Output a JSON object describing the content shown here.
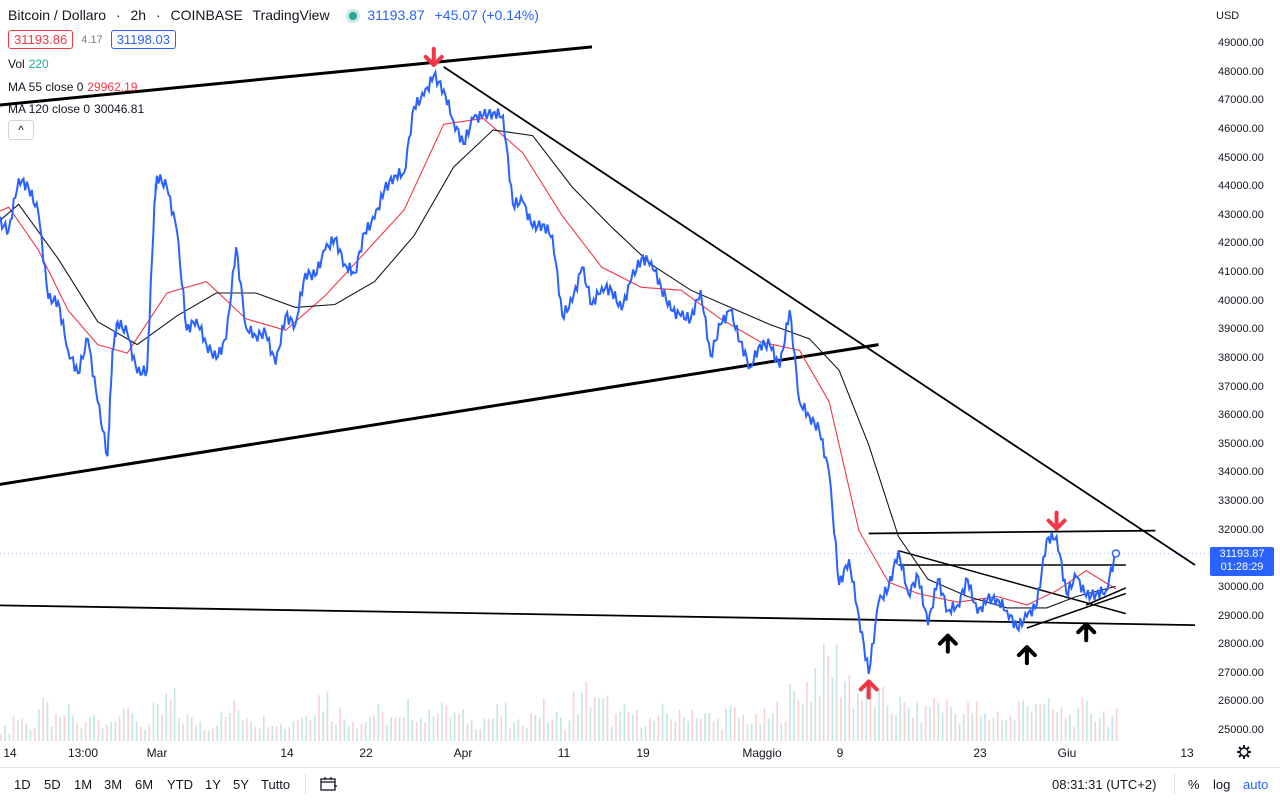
{
  "header": {
    "symbol": "Bitcoin / Dollaro",
    "interval": "2h",
    "exchange": "COINBASE",
    "provider": "TradingView",
    "last_price": "31193.87",
    "change": "+45.07 (+0.14%)",
    "bid": "31193.86",
    "spread": "4.17",
    "ask": "31198.03"
  },
  "indicators": {
    "vol_label": "Vol",
    "vol_value": "220",
    "ma55_label": "MA 55 close 0",
    "ma55_value": "29962.19",
    "ma120_label": "MA 120 close 0",
    "ma120_value": "30046.81",
    "collapse_glyph": "^"
  },
  "price_axis": {
    "currency": "USD",
    "ticks": [
      "49000.00",
      "48000.00",
      "47000.00",
      "46000.00",
      "45000.00",
      "44000.00",
      "43000.00",
      "42000.00",
      "41000.00",
      "40000.00",
      "39000.00",
      "38000.00",
      "37000.00",
      "36000.00",
      "35000.00",
      "34000.00",
      "33000.00",
      "32000.00",
      "31000.00",
      "30000.00",
      "29000.00",
      "28000.00",
      "27000.00",
      "26000.00",
      "25000.00"
    ],
    "last_price_tag": "31193.87",
    "countdown": "01:28:29"
  },
  "time_axis": {
    "ticks": [
      "14",
      "13:00",
      "Mar",
      "14",
      "22",
      "Apr",
      "11",
      "19",
      "Maggio",
      "9",
      "23",
      "Giu",
      "13"
    ]
  },
  "bottom_toolbar": {
    "timeframes": [
      "1D",
      "5D",
      "1M",
      "3M",
      "6M",
      "YTD",
      "1Y",
      "5Y",
      "Tutto"
    ],
    "clock": "08:31:31 (UTC+2)",
    "percent": "%",
    "log": "log",
    "auto": "auto"
  },
  "colors": {
    "price_line": "#2962ff",
    "ma55": "#f23645",
    "ma120": "#131722",
    "volume_up": "#26a69a",
    "volume_down": "#ef5350",
    "arrow_red": "#f23645",
    "arrow_black": "#000000"
  },
  "chart_data": {
    "type": "line",
    "title": "Bitcoin / Dollaro, 2h, COINBASE",
    "ylim": [
      24800,
      49800
    ],
    "x_range": [
      "2022-02-12",
      "2022-06-14"
    ],
    "series": [
      {
        "name": "Bitcoin / Dollaro",
        "points": [
          [
            "2022-02-12",
            42100
          ],
          [
            "2022-02-13",
            42800
          ],
          [
            "2022-02-14",
            42500
          ],
          [
            "2022-02-15",
            44300
          ],
          [
            "2022-02-16",
            44000
          ],
          [
            "2022-02-17",
            43100
          ],
          [
            "2022-02-18",
            40100
          ],
          [
            "2022-02-19",
            40000
          ],
          [
            "2022-02-20",
            38300
          ],
          [
            "2022-02-21",
            37500
          ],
          [
            "2022-02-22",
            38700
          ],
          [
            "2022-02-23",
            36500
          ],
          [
            "2022-02-24",
            34600
          ],
          [
            "2022-02-24T12:00",
            38300
          ],
          [
            "2022-02-25",
            39300
          ],
          [
            "2022-02-26",
            38900
          ],
          [
            "2022-02-27",
            37500
          ],
          [
            "2022-02-28",
            37600
          ],
          [
            "2022-02-28T18:00",
            43500
          ],
          [
            "2022-03-01",
            44400
          ],
          [
            "2022-03-02",
            44000
          ],
          [
            "2022-03-03",
            42500
          ],
          [
            "2022-03-04",
            39000
          ],
          [
            "2022-03-05",
            39400
          ],
          [
            "2022-03-06",
            38500
          ],
          [
            "2022-03-07",
            38000
          ],
          [
            "2022-03-08",
            38700
          ],
          [
            "2022-03-09",
            41900
          ],
          [
            "2022-03-10",
            39100
          ],
          [
            "2022-03-11",
            38800
          ],
          [
            "2022-03-12",
            38900
          ],
          [
            "2022-03-13",
            37800
          ],
          [
            "2022-03-14",
            39500
          ],
          [
            "2022-03-15",
            39200
          ],
          [
            "2022-03-16",
            41000
          ],
          [
            "2022-03-17",
            40900
          ],
          [
            "2022-03-18",
            41800
          ],
          [
            "2022-03-19",
            42200
          ],
          [
            "2022-03-20",
            41300
          ],
          [
            "2022-03-21",
            41000
          ],
          [
            "2022-03-22",
            42400
          ],
          [
            "2022-03-23",
            42900
          ],
          [
            "2022-03-24",
            43900
          ],
          [
            "2022-03-25",
            44400
          ],
          [
            "2022-03-26",
            44500
          ],
          [
            "2022-03-27",
            46800
          ],
          [
            "2022-03-28",
            47200
          ],
          [
            "2022-03-29",
            47900
          ],
          [
            "2022-03-30",
            47400
          ],
          [
            "2022-03-31",
            46300
          ],
          [
            "2022-04-01",
            45500
          ],
          [
            "2022-04-02",
            46400
          ],
          [
            "2022-04-03",
            46500
          ],
          [
            "2022-04-04",
            46600
          ],
          [
            "2022-04-05",
            46500
          ],
          [
            "2022-04-06",
            43400
          ],
          [
            "2022-04-07",
            43500
          ],
          [
            "2022-04-08",
            42600
          ],
          [
            "2022-04-09",
            42700
          ],
          [
            "2022-04-10",
            42300
          ],
          [
            "2022-04-11",
            39500
          ],
          [
            "2022-04-12",
            40000
          ],
          [
            "2022-04-13",
            41200
          ],
          [
            "2022-04-14",
            39900
          ],
          [
            "2022-04-15",
            40500
          ],
          [
            "2022-04-16",
            40400
          ],
          [
            "2022-04-17",
            39700
          ],
          [
            "2022-04-18",
            40800
          ],
          [
            "2022-04-19",
            41500
          ],
          [
            "2022-04-20",
            41400
          ],
          [
            "2022-04-21",
            40500
          ],
          [
            "2022-04-22",
            39700
          ],
          [
            "2022-04-23",
            39500
          ],
          [
            "2022-04-24",
            39400
          ],
          [
            "2022-04-25",
            40400
          ],
          [
            "2022-04-26",
            38100
          ],
          [
            "2022-04-27",
            39200
          ],
          [
            "2022-04-28",
            39700
          ],
          [
            "2022-04-29",
            38600
          ],
          [
            "2022-04-30",
            37700
          ],
          [
            "2022-05-01",
            38500
          ],
          [
            "2022-05-02",
            38500
          ],
          [
            "2022-05-03",
            37700
          ],
          [
            "2022-05-04",
            39700
          ],
          [
            "2022-05-05",
            36500
          ],
          [
            "2022-05-06",
            36000
          ],
          [
            "2022-05-07",
            35500
          ],
          [
            "2022-05-08",
            34000
          ],
          [
            "2022-05-09",
            30100
          ],
          [
            "2022-05-10",
            31000
          ],
          [
            "2022-05-11",
            29000
          ],
          [
            "2022-05-12",
            27000
          ],
          [
            "2022-05-13",
            29500
          ],
          [
            "2022-05-14",
            30000
          ],
          [
            "2022-05-15",
            31300
          ],
          [
            "2022-05-16",
            29800
          ],
          [
            "2022-05-17",
            30400
          ],
          [
            "2022-05-18",
            28700
          ],
          [
            "2022-05-19",
            30300
          ],
          [
            "2022-05-20",
            29200
          ],
          [
            "2022-05-21",
            29400
          ],
          [
            "2022-05-22",
            30300
          ],
          [
            "2022-05-23",
            29100
          ],
          [
            "2022-05-24",
            29600
          ],
          [
            "2022-05-25",
            29600
          ],
          [
            "2022-05-26",
            29200
          ],
          [
            "2022-05-27",
            28600
          ],
          [
            "2022-05-28",
            29000
          ],
          [
            "2022-05-29",
            29400
          ],
          [
            "2022-05-30",
            31700
          ],
          [
            "2022-05-31",
            31800
          ],
          [
            "2022-06-01",
            29800
          ],
          [
            "2022-06-02",
            30400
          ],
          [
            "2022-06-03",
            29700
          ],
          [
            "2022-06-04",
            29800
          ],
          [
            "2022-06-05",
            29900
          ],
          [
            "2022-06-06",
            31200
          ]
        ]
      },
      {
        "name": "MA 55 close 0",
        "points": [
          [
            "2022-02-12",
            43000
          ],
          [
            "2022-02-14",
            43300
          ],
          [
            "2022-02-17",
            41800
          ],
          [
            "2022-02-20",
            39700
          ],
          [
            "2022-02-23",
            38500
          ],
          [
            "2022-02-26",
            38200
          ],
          [
            "2022-03-02",
            40300
          ],
          [
            "2022-03-06",
            40700
          ],
          [
            "2022-03-10",
            39400
          ],
          [
            "2022-03-14",
            39000
          ],
          [
            "2022-03-18",
            40200
          ],
          [
            "2022-03-22",
            41700
          ],
          [
            "2022-03-26",
            43200
          ],
          [
            "2022-03-30",
            46200
          ],
          [
            "2022-04-03",
            46400
          ],
          [
            "2022-04-07",
            45200
          ],
          [
            "2022-04-11",
            43000
          ],
          [
            "2022-04-15",
            41200
          ],
          [
            "2022-04-19",
            40500
          ],
          [
            "2022-04-23",
            40400
          ],
          [
            "2022-04-27",
            39400
          ],
          [
            "2022-05-01",
            38600
          ],
          [
            "2022-05-05",
            38300
          ],
          [
            "2022-05-08",
            36500
          ],
          [
            "2022-05-11",
            32000
          ],
          [
            "2022-05-14",
            30200
          ],
          [
            "2022-05-17",
            29800
          ],
          [
            "2022-05-21",
            29500
          ],
          [
            "2022-05-25",
            29700
          ],
          [
            "2022-05-28",
            29400
          ],
          [
            "2022-05-31",
            29900
          ],
          [
            "2022-06-03",
            30600
          ],
          [
            "2022-06-06",
            29960
          ]
        ]
      },
      {
        "name": "MA 120 close 0",
        "points": [
          [
            "2022-02-12",
            42500
          ],
          [
            "2022-02-15",
            43400
          ],
          [
            "2022-02-19",
            41500
          ],
          [
            "2022-02-23",
            39300
          ],
          [
            "2022-02-27",
            38500
          ],
          [
            "2022-03-03",
            39500
          ],
          [
            "2022-03-07",
            40300
          ],
          [
            "2022-03-11",
            40300
          ],
          [
            "2022-03-15",
            39800
          ],
          [
            "2022-03-19",
            39900
          ],
          [
            "2022-03-23",
            40700
          ],
          [
            "2022-03-27",
            42300
          ],
          [
            "2022-03-31",
            44700
          ],
          [
            "2022-04-04",
            46000
          ],
          [
            "2022-04-08",
            45800
          ],
          [
            "2022-04-12",
            44000
          ],
          [
            "2022-04-16",
            42600
          ],
          [
            "2022-04-20",
            41300
          ],
          [
            "2022-04-24",
            40400
          ],
          [
            "2022-04-28",
            39800
          ],
          [
            "2022-05-02",
            39200
          ],
          [
            "2022-05-06",
            38700
          ],
          [
            "2022-05-09",
            37600
          ],
          [
            "2022-05-12",
            35000
          ],
          [
            "2022-05-15",
            31800
          ],
          [
            "2022-05-18",
            30300
          ],
          [
            "2022-05-22",
            29700
          ],
          [
            "2022-05-26",
            29300
          ],
          [
            "2022-05-30",
            29300
          ],
          [
            "2022-06-02",
            29700
          ],
          [
            "2022-06-06",
            30050
          ]
        ]
      }
    ],
    "trendlines": [
      {
        "from": [
          "2022-02-11",
          46800
        ],
        "to": [
          "2022-04-14",
          48900
        ]
      },
      {
        "from": [
          "2022-02-11",
          33500
        ],
        "to": [
          "2022-05-13",
          38500
        ]
      },
      {
        "from": [
          "2022-03-30",
          48200
        ],
        "to": [
          "2022-06-14",
          30800
        ]
      },
      {
        "from": [
          "2022-02-11",
          29400
        ],
        "to": [
          "2022-06-14",
          28700
        ]
      },
      {
        "from": [
          "2022-05-12",
          31900
        ],
        "to": [
          "2022-06-10",
          32000
        ]
      },
      {
        "from": [
          "2022-05-15",
          30800
        ],
        "to": [
          "2022-06-07",
          30800
        ]
      },
      {
        "from": [
          "2022-05-15",
          31300
        ],
        "to": [
          "2022-06-07",
          29100
        ]
      },
      {
        "from": [
          "2022-05-28",
          28600
        ],
        "to": [
          "2022-06-07",
          29800
        ]
      },
      {
        "from": [
          "2022-06-03",
          29400
        ],
        "to": [
          "2022-06-07",
          30000
        ]
      }
    ],
    "markers": [
      {
        "date": "2022-03-29",
        "price": 48200,
        "dir": "down",
        "color": "red"
      },
      {
        "date": "2022-05-12",
        "price": 26800,
        "dir": "up",
        "color": "red"
      },
      {
        "date": "2022-05-31",
        "price": 32000,
        "dir": "down",
        "color": "red"
      },
      {
        "date": "2022-05-20",
        "price": 28400,
        "dir": "up",
        "color": "black"
      },
      {
        "date": "2022-05-28",
        "price": 28000,
        "dir": "up",
        "color": "black"
      },
      {
        "date": "2022-06-03",
        "price": 28800,
        "dir": "up",
        "color": "black"
      }
    ],
    "volume": {
      "description_values_relative": [
        0.15,
        0.3,
        0.2,
        0.4,
        0.25,
        0.35,
        0.2,
        0.3,
        0.25,
        0.45,
        0.3,
        0.2,
        0.35,
        0.5,
        0.3,
        0.25,
        0.2,
        0.3,
        0.4,
        0.35,
        0.25,
        0.3,
        0.2,
        0.3,
        0.45,
        0.55,
        0.35,
        0.3,
        0.25,
        0.35,
        0.3,
        0.25,
        0.4,
        0.3,
        0.5,
        0.35,
        0.3,
        0.25,
        0.3,
        0.35,
        0.2,
        0.3,
        0.4,
        0.3,
        0.25,
        0.5,
        0.6,
        0.45,
        0.3,
        0.35,
        0.3,
        0.25,
        0.35,
        0.3,
        0.4,
        0.3,
        0.25,
        0.35,
        0.3,
        0.25,
        0.3,
        0.4,
        0.55,
        0.7,
        0.9,
        1.0,
        0.8,
        0.6,
        0.55,
        0.5,
        0.45,
        0.4,
        0.35,
        0.5,
        0.45,
        0.35,
        0.4,
        0.3,
        0.35,
        0.3,
        0.45,
        0.55,
        0.4,
        0.35,
        0.3,
        0.4,
        0.35,
        0.3
      ],
      "max_value": 1
    }
  }
}
